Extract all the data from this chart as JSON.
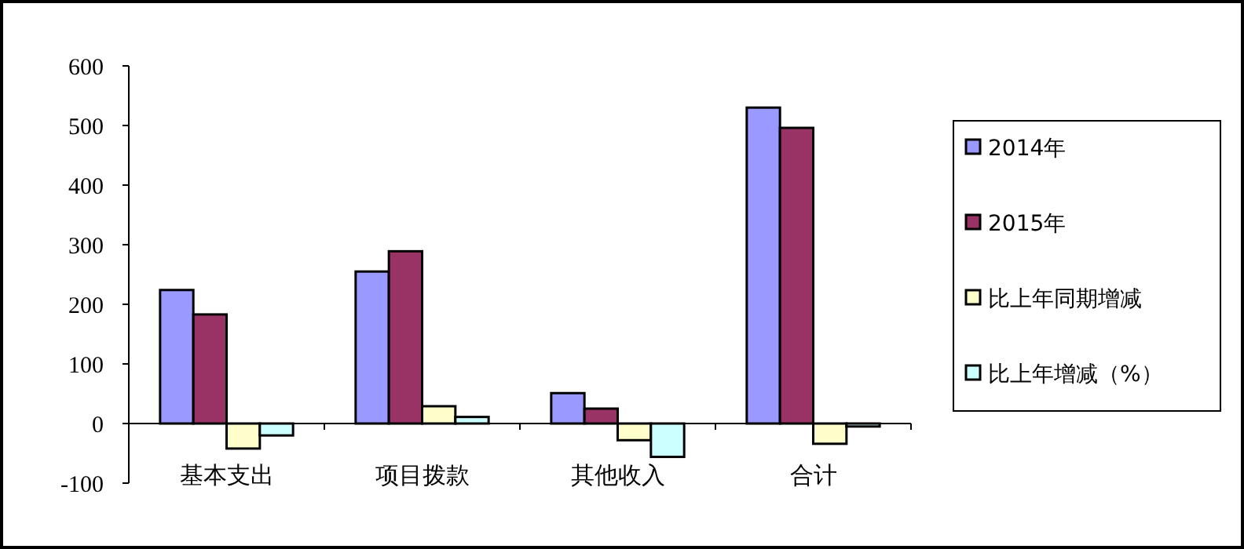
{
  "chart_data": {
    "type": "bar",
    "categories": [
      "基本支出",
      "项目拨款",
      "其他收入",
      "合计"
    ],
    "series": [
      {
        "name": "2014年",
        "color": "#9999ff",
        "values": [
          224,
          255,
          51,
          530
        ]
      },
      {
        "name": "2015年",
        "color": "#993366",
        "values": [
          183,
          289,
          25,
          496
        ]
      },
      {
        "name": "比上年同期增减",
        "color": "#ffffcc",
        "values": [
          -42,
          29,
          -28,
          -34
        ]
      },
      {
        "name": "比上年增减（%）",
        "color": "#ccffff",
        "values": [
          -20,
          11,
          -56,
          -5
        ]
      }
    ],
    "ylim": [
      -100,
      600
    ],
    "yticks": [
      -100,
      0,
      100,
      200,
      300,
      400,
      500,
      600
    ],
    "grid": false,
    "legend": "right"
  }
}
